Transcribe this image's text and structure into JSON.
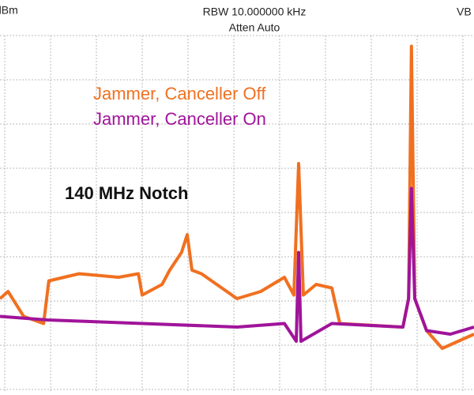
{
  "chart_data": {
    "type": "line",
    "header": {
      "left": "dBm",
      "center": "RBW 10.000000 kHz",
      "center_sub": "Atten Auto",
      "right": "VB"
    },
    "annotation": "140 MHz Notch",
    "xlim": [
      0,
      100
    ],
    "ylim": [
      0,
      100
    ],
    "grid": true,
    "series": [
      {
        "name": "Jammer, Canceller Off",
        "color": "#f07020",
        "x": [
          0,
          1.7,
          5,
          9.2,
          10.3,
          16.7,
          25,
          29.2,
          30,
          34.2,
          35.8,
          38.3,
          39.5,
          40.5,
          42.5,
          50,
          55,
          60,
          62,
          63,
          64,
          66.7,
          70,
          71.7,
          85,
          86.2,
          86.8,
          87.5,
          90,
          93.3,
          100
        ],
        "values": [
          26,
          28,
          21,
          19,
          31,
          33,
          32,
          33,
          27,
          30,
          34,
          39,
          44,
          34,
          33,
          26,
          28,
          32,
          27,
          64,
          27,
          30,
          29,
          19,
          18,
          26,
          97,
          26,
          17,
          12,
          16
        ]
      },
      {
        "name": "Jammer, Canceller On",
        "color": "#a0149a",
        "x": [
          0,
          10,
          30,
          50,
          60,
          62.5,
          63,
          63.5,
          70,
          85,
          86.2,
          86.8,
          87.5,
          90,
          95,
          100
        ],
        "values": [
          21,
          20,
          19,
          18,
          19,
          14,
          39,
          14,
          19,
          18,
          26,
          57,
          26,
          17,
          16,
          18
        ]
      }
    ]
  }
}
